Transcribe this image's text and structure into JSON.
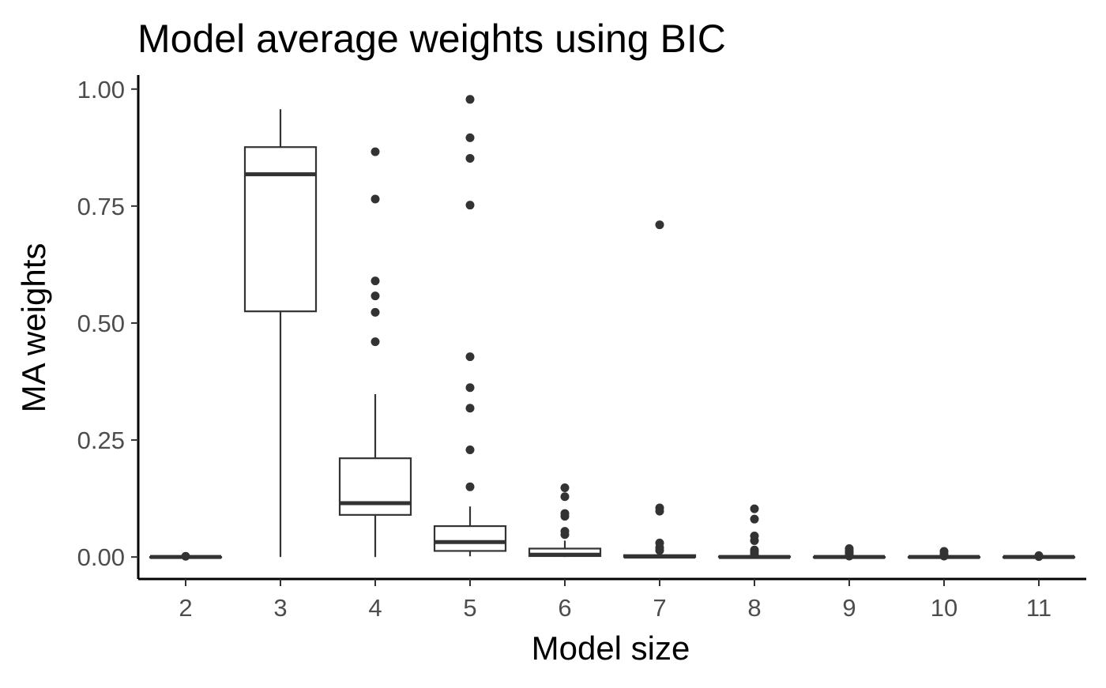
{
  "chart_data": {
    "type": "boxplot",
    "title": "Model average weights using BIC",
    "xlabel": "Model size",
    "ylabel": "MA weights",
    "ylim": [
      -0.047,
      1.03
    ],
    "yticks": [
      0,
      0.25,
      0.5,
      0.75,
      1
    ],
    "ytick_labels": [
      "0.00",
      "0.25",
      "0.50",
      "0.75",
      "1.00"
    ],
    "categories": [
      "2",
      "3",
      "4",
      "5",
      "6",
      "7",
      "8",
      "9",
      "10",
      "11"
    ],
    "grid": false,
    "legend": "none",
    "colors": {
      "box_stroke": "#333333",
      "box_fill": "#ffffff",
      "point": "#333333",
      "axis": "#000000",
      "tick_text": "#4d4d4d"
    },
    "boxes": [
      {
        "category": "2",
        "whisker_low": 0,
        "q1": 0,
        "median": 0,
        "q3": 0,
        "whisker_high": 0,
        "outliers": [
          0.0015
        ]
      },
      {
        "category": "3",
        "whisker_low": 0,
        "q1": 0.525,
        "median": 0.818,
        "q3": 0.876,
        "whisker_high": 0.957,
        "outliers": []
      },
      {
        "category": "4",
        "whisker_low": 0,
        "q1": 0.09,
        "median": 0.115,
        "q3": 0.211,
        "whisker_high": 0.348,
        "outliers": [
          0.46,
          0.523,
          0.558,
          0.59,
          0.765,
          0.866
        ]
      },
      {
        "category": "5",
        "whisker_low": 0.0015,
        "q1": 0.013,
        "median": 0.032,
        "q3": 0.066,
        "whisker_high": 0.108,
        "outliers": [
          0.15,
          0.229,
          0.318,
          0.362,
          0.428,
          0.752,
          0.852,
          0.896,
          0.978
        ]
      },
      {
        "category": "6",
        "whisker_low": 0,
        "q1": 0.002,
        "median": 0.005,
        "q3": 0.018,
        "whisker_high": 0.035,
        "outliers": [
          0.048,
          0.055,
          0.087,
          0.093,
          0.129,
          0.148
        ]
      },
      {
        "category": "7",
        "whisker_low": 0,
        "q1": 0,
        "median": 0.001,
        "q3": 0.004,
        "whisker_high": 0.008,
        "outliers": [
          0.014,
          0.02,
          0.03,
          0.098,
          0.105,
          0.71
        ]
      },
      {
        "category": "8",
        "whisker_low": 0,
        "q1": 0,
        "median": 0,
        "q3": 0.001,
        "whisker_high": 0.003,
        "outliers": [
          0.006,
          0.011,
          0.015,
          0.035,
          0.045,
          0.081,
          0.103
        ]
      },
      {
        "category": "9",
        "whisker_low": 0,
        "q1": 0,
        "median": 0,
        "q3": 0,
        "whisker_high": 0,
        "outliers": [
          0.002,
          0.005,
          0.009,
          0.013,
          0.018
        ]
      },
      {
        "category": "10",
        "whisker_low": 0,
        "q1": 0,
        "median": 0,
        "q3": 0,
        "whisker_high": 0,
        "outliers": [
          0.002,
          0.006,
          0.012
        ]
      },
      {
        "category": "11",
        "whisker_low": 0,
        "q1": 0,
        "median": 0,
        "q3": 0,
        "whisker_high": 0,
        "outliers": [
          0.001,
          0.003
        ]
      }
    ]
  }
}
